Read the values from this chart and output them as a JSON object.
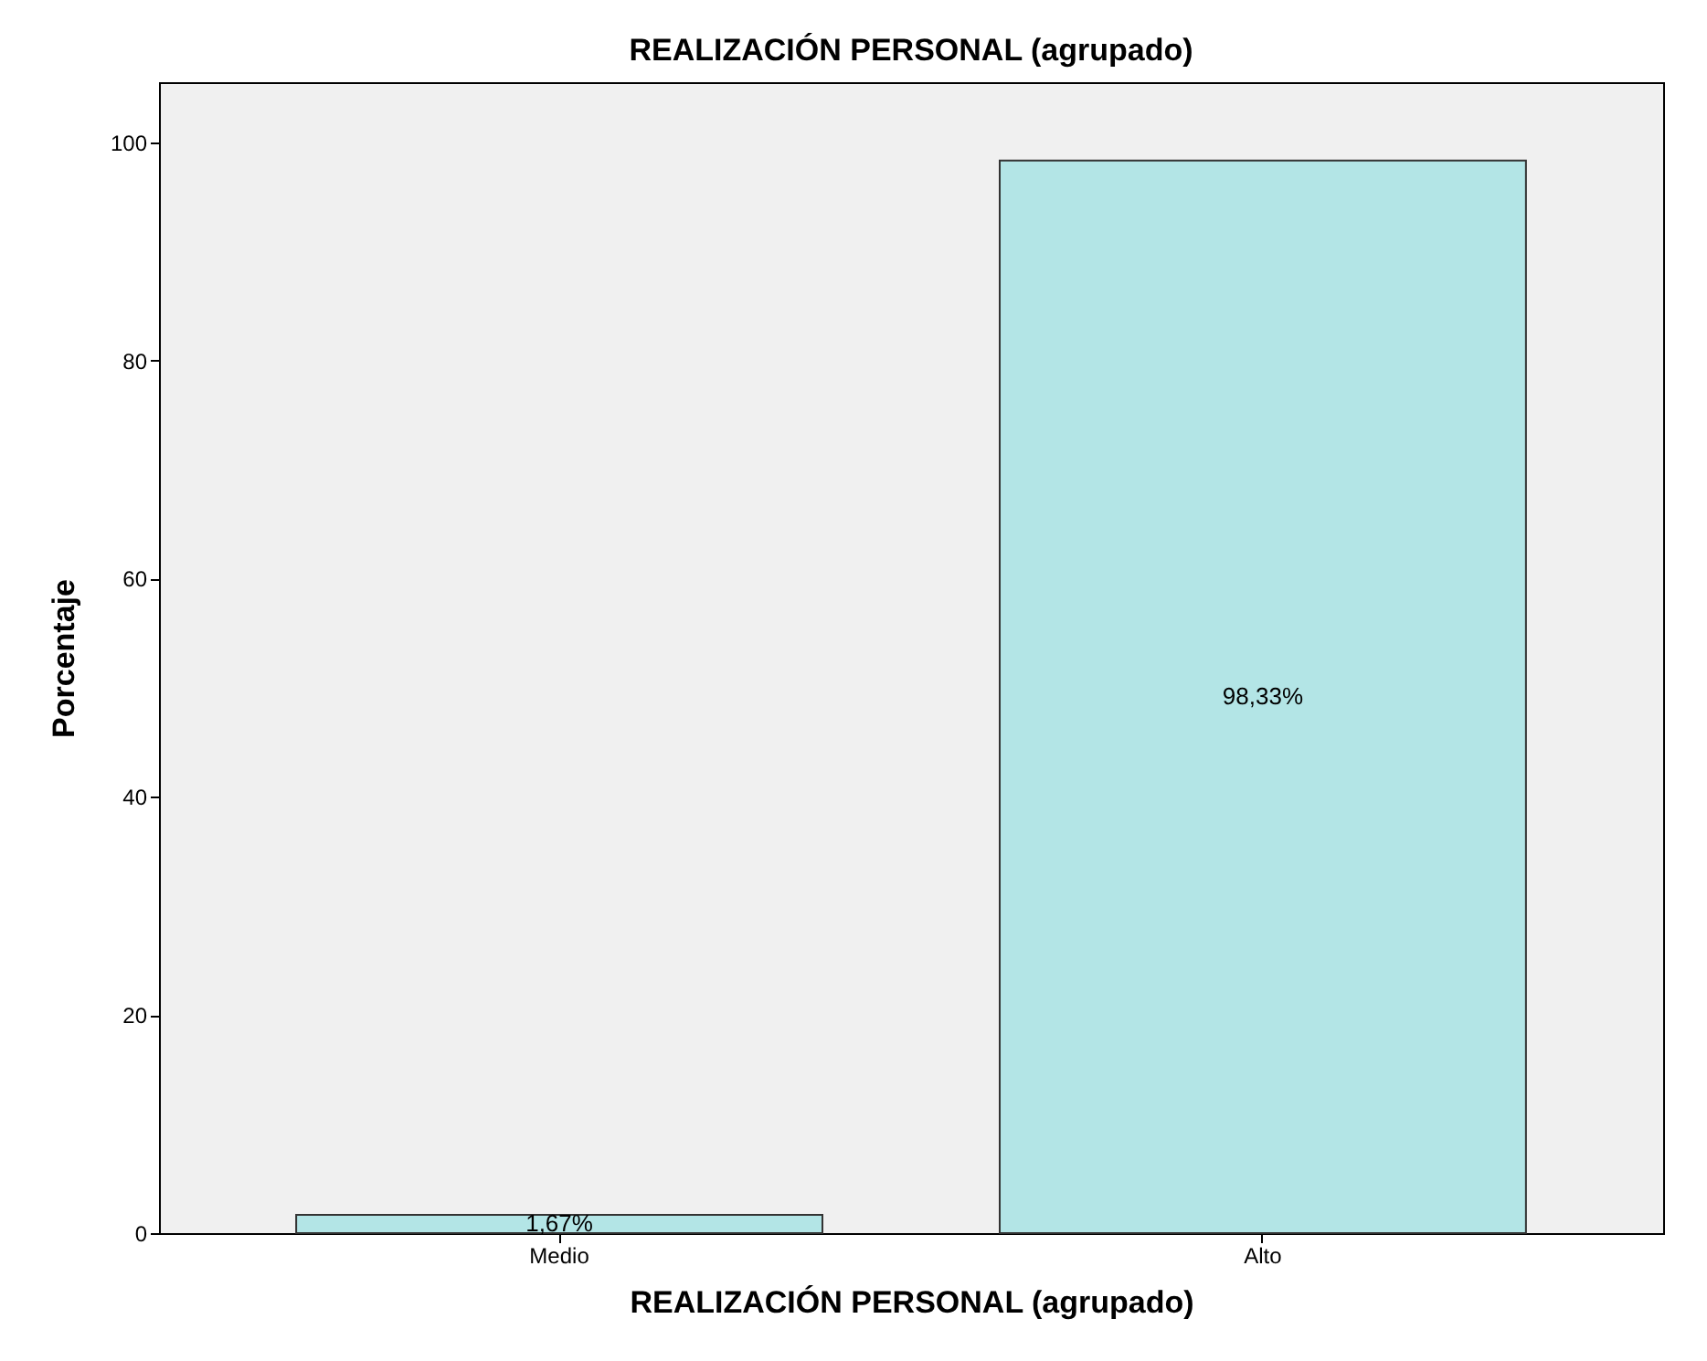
{
  "chart_data": {
    "type": "bar",
    "title": "REALIZACIÓN PERSONAL (agrupado)",
    "xlabel": "REALIZACIÓN PERSONAL (agrupado)",
    "ylabel": "Porcentaje",
    "categories": [
      "Medio",
      "Alto"
    ],
    "values": [
      1.67,
      98.33
    ],
    "value_labels": [
      "1,67%",
      "98,33%"
    ],
    "color": "#b3e5e6",
    "ylim": [
      0,
      105.5
    ],
    "yticks": [
      0,
      20,
      40,
      60,
      80,
      100
    ],
    "grid": false
  }
}
